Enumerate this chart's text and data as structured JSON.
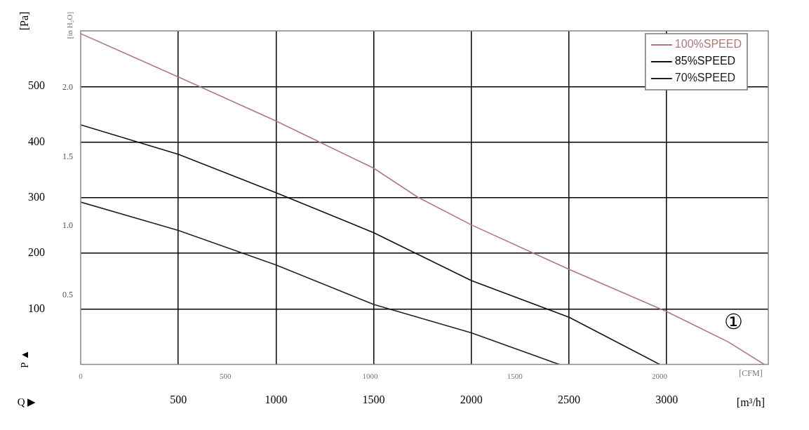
{
  "chart_data": {
    "type": "line",
    "xlabel": "[m³/h]",
    "ylabel": "[Pa]",
    "y2label": "[in H₂O]",
    "x2label": "[CFM]",
    "xlim": [
      0,
      3520
    ],
    "xticks": [
      500,
      1000,
      1500,
      2000,
      2500,
      3000
    ],
    "x2lim": [
      0,
      2376
    ],
    "x2ticks": [
      0,
      500,
      1000,
      1500,
      2000
    ],
    "ylim": [
      0,
      600
    ],
    "yticks": [
      100,
      200,
      300,
      400,
      500
    ],
    "y2lim": [
      0,
      2.41
    ],
    "y2ticks": [
      0.5,
      {
        "value": 1,
        "label": "1.0"
      },
      1.5,
      {
        "value": 2,
        "label": "2.0"
      }
    ],
    "grid": true,
    "legend": "top right",
    "series": [
      {
        "name": "100%SPEED",
        "color": "#b07878",
        "x": [
          0,
          500,
          1000,
          1500,
          1725,
          2000,
          2500,
          3000,
          3313,
          3500
        ],
        "values": [
          595,
          517,
          438,
          353,
          301,
          251,
          171,
          95,
          41,
          0
        ]
      },
      {
        "name": "85%SPEED",
        "color": "#111111",
        "x": [
          0,
          500,
          1000,
          1500,
          2000,
          2500,
          2965
        ],
        "values": [
          431,
          378,
          309,
          237,
          151,
          85,
          0
        ]
      },
      {
        "name": "70%SPEED",
        "color": "#222222",
        "x": [
          0,
          500,
          1000,
          1500,
          2000,
          2450
        ],
        "values": [
          292,
          241,
          179,
          108,
          57,
          0
        ]
      }
    ],
    "annotations": [
      "Q ▶",
      "P ▲",
      "①"
    ]
  }
}
